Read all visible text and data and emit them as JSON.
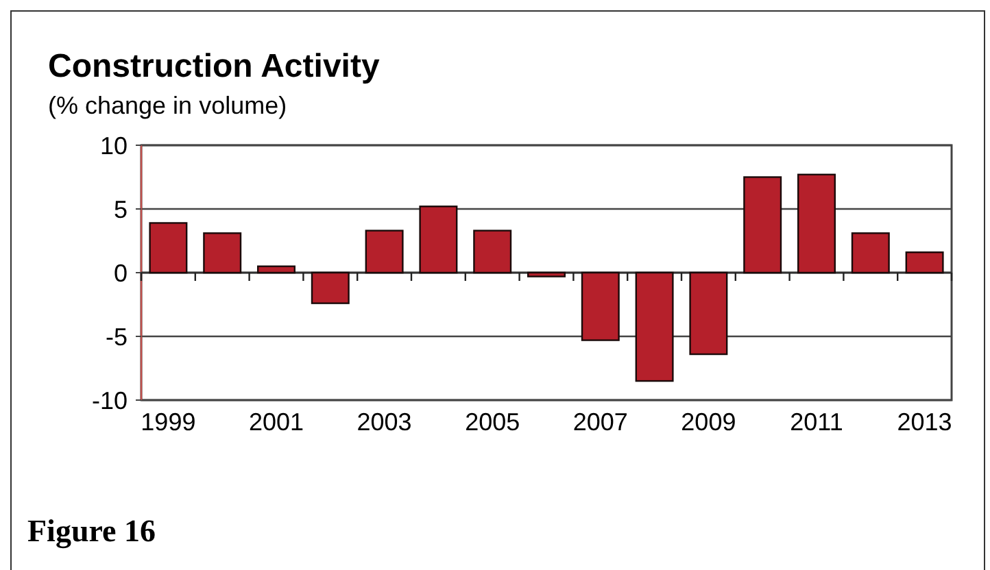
{
  "chart_data": {
    "type": "bar",
    "title": "Construction Activity",
    "subtitle": "(% change in volume)",
    "categories": [
      "1999",
      null,
      "2001",
      null,
      "2003",
      null,
      "2005",
      null,
      "2007",
      null,
      "2009",
      null,
      "2011",
      null,
      "2013"
    ],
    "values": [
      3.9,
      3.1,
      0.5,
      -2.4,
      3.3,
      5.2,
      3.3,
      -0.3,
      -5.3,
      -8.5,
      -6.4,
      7.5,
      7.7,
      3.1,
      1.6
    ],
    "color": "#b5202b",
    "ylim": [
      -10,
      10
    ],
    "yticks": [
      -10,
      -5,
      0,
      5,
      10
    ],
    "grid": "y",
    "annotations": [
      "Figure 16"
    ]
  }
}
